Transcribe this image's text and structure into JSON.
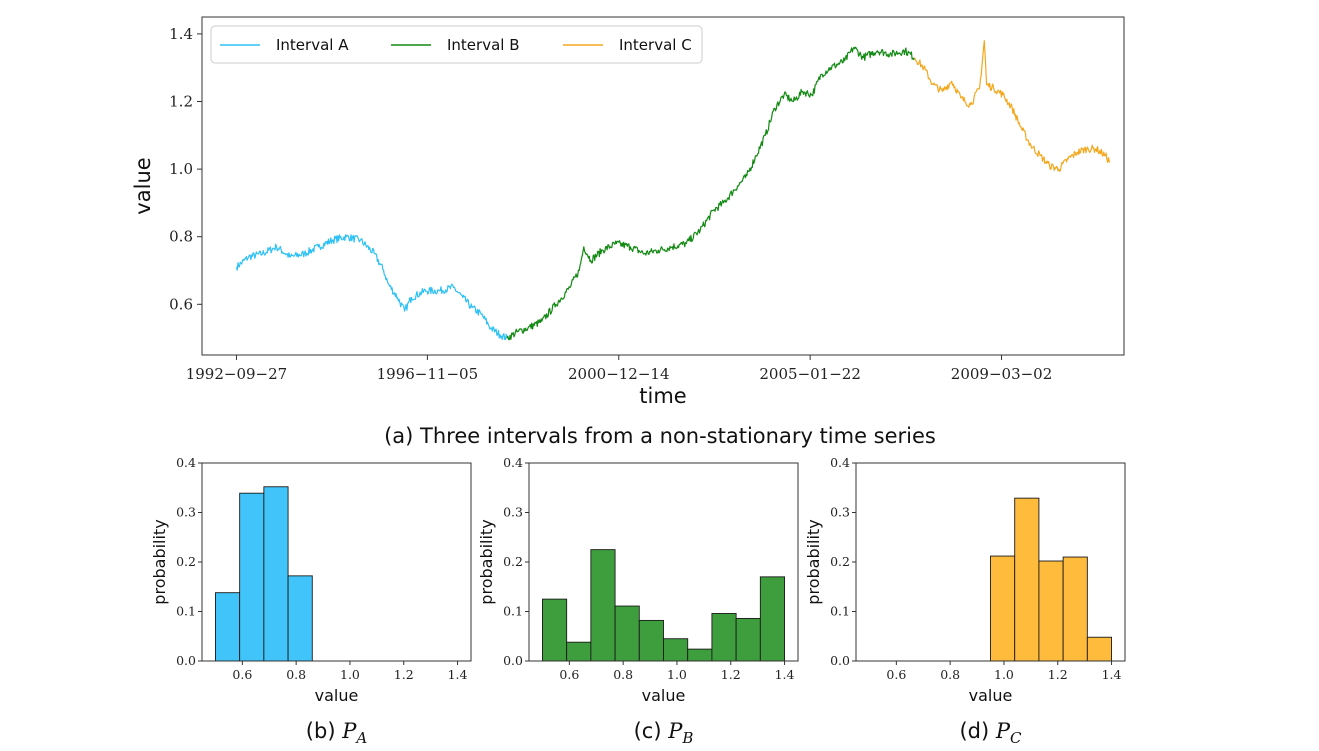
{
  "chart_data": [
    {
      "type": "line",
      "panel": "a",
      "xlabel": "time",
      "ylabel": "value",
      "caption": "(a) Three intervals from a non-stationary time series",
      "x_ticks": [
        "1992−09−27",
        "1996−11−05",
        "2000−12−14",
        "2005−01−22",
        "2009−03−02"
      ],
      "x_tick_years": [
        1992.74,
        1996.84,
        2000.95,
        2005.06,
        2009.17
      ],
      "xlim": [
        1992.0,
        2011.8
      ],
      "ylim": [
        0.45,
        1.45
      ],
      "y_ticks": [
        0.6,
        0.8,
        1.0,
        1.2,
        1.4
      ],
      "y_tick_labels": [
        "0.6",
        "0.8",
        "1.0",
        "1.2",
        "1.4"
      ],
      "legend_position": "top-left",
      "series": [
        {
          "name": "Interval A",
          "color": "#2ec1f5",
          "points": [
            [
              1992.74,
              0.71
            ],
            [
              1993.0,
              0.74
            ],
            [
              1993.3,
              0.75
            ],
            [
              1993.6,
              0.77
            ],
            [
              1993.9,
              0.74
            ],
            [
              1994.2,
              0.75
            ],
            [
              1994.5,
              0.77
            ],
            [
              1994.8,
              0.79
            ],
            [
              1995.1,
              0.8
            ],
            [
              1995.4,
              0.79
            ],
            [
              1995.7,
              0.75
            ],
            [
              1995.9,
              0.7
            ],
            [
              1996.0,
              0.66
            ],
            [
              1996.2,
              0.62
            ],
            [
              1996.35,
              0.58
            ],
            [
              1996.5,
              0.62
            ],
            [
              1996.8,
              0.64
            ],
            [
              1997.1,
              0.64
            ],
            [
              1997.4,
              0.65
            ],
            [
              1997.6,
              0.62
            ],
            [
              1997.8,
              0.59
            ],
            [
              1998.0,
              0.57
            ],
            [
              1998.2,
              0.53
            ],
            [
              1998.4,
              0.51
            ],
            [
              1998.55,
              0.5
            ]
          ]
        },
        {
          "name": "Interval B",
          "color": "#138a13",
          "points": [
            [
              1998.55,
              0.5
            ],
            [
              1998.8,
              0.52
            ],
            [
              1999.0,
              0.53
            ],
            [
              1999.3,
              0.55
            ],
            [
              1999.6,
              0.6
            ],
            [
              1999.9,
              0.65
            ],
            [
              2000.1,
              0.7
            ],
            [
              2000.2,
              0.77
            ],
            [
              2000.35,
              0.73
            ],
            [
              2000.6,
              0.76
            ],
            [
              2000.9,
              0.78
            ],
            [
              2001.2,
              0.77
            ],
            [
              2001.5,
              0.75
            ],
            [
              2001.8,
              0.76
            ],
            [
              2002.1,
              0.77
            ],
            [
              2002.4,
              0.78
            ],
            [
              2002.7,
              0.82
            ],
            [
              2003.0,
              0.88
            ],
            [
              2003.2,
              0.9
            ],
            [
              2003.5,
              0.95
            ],
            [
              2003.7,
              0.98
            ],
            [
              2003.9,
              1.04
            ],
            [
              2004.1,
              1.1
            ],
            [
              2004.3,
              1.18
            ],
            [
              2004.5,
              1.22
            ],
            [
              2004.7,
              1.2
            ],
            [
              2004.9,
              1.23
            ],
            [
              2005.1,
              1.22
            ],
            [
              2005.3,
              1.28
            ],
            [
              2005.5,
              1.3
            ],
            [
              2005.8,
              1.32
            ],
            [
              2006.0,
              1.36
            ],
            [
              2006.2,
              1.33
            ],
            [
              2006.5,
              1.35
            ],
            [
              2006.8,
              1.34
            ],
            [
              2007.1,
              1.35
            ],
            [
              2007.3,
              1.33
            ]
          ]
        },
        {
          "name": "Interval C",
          "color": "#f5a71c",
          "points": [
            [
              2007.3,
              1.33
            ],
            [
              2007.5,
              1.3
            ],
            [
              2007.7,
              1.25
            ],
            [
              2007.9,
              1.23
            ],
            [
              2008.1,
              1.26
            ],
            [
              2008.3,
              1.21
            ],
            [
              2008.5,
              1.19
            ],
            [
              2008.7,
              1.24
            ],
            [
              2008.8,
              1.38
            ],
            [
              2008.85,
              1.25
            ],
            [
              2009.0,
              1.24
            ],
            [
              2009.2,
              1.22
            ],
            [
              2009.4,
              1.18
            ],
            [
              2009.6,
              1.12
            ],
            [
              2009.8,
              1.07
            ],
            [
              2010.0,
              1.04
            ],
            [
              2010.2,
              1.01
            ],
            [
              2010.4,
              1.0
            ],
            [
              2010.6,
              1.03
            ],
            [
              2010.8,
              1.05
            ],
            [
              2011.0,
              1.06
            ],
            [
              2011.2,
              1.06
            ],
            [
              2011.4,
              1.04
            ],
            [
              2011.5,
              1.02
            ]
          ]
        }
      ]
    },
    {
      "type": "bar",
      "panel": "b",
      "caption_prefix": "(b) ",
      "caption_var": "P",
      "caption_sub": "A",
      "color": "#40c4f9",
      "xlabel": "value",
      "ylabel": "probability",
      "xlim": [
        0.45,
        1.45
      ],
      "ylim": [
        0,
        0.4
      ],
      "x_ticks": [
        0.6,
        0.8,
        1.0,
        1.2,
        1.4
      ],
      "x_tick_labels": [
        "0.6",
        "0.8",
        "1.0",
        "1.2",
        "1.4"
      ],
      "y_ticks": [
        0.0,
        0.1,
        0.2,
        0.3,
        0.4
      ],
      "y_tick_labels": [
        "0.0",
        "0.1",
        "0.2",
        "0.3",
        "0.4"
      ],
      "bin_edges": [
        0.5,
        0.59,
        0.68,
        0.77,
        0.86
      ],
      "values": [
        0.138,
        0.339,
        0.352,
        0.172
      ]
    },
    {
      "type": "bar",
      "panel": "c",
      "caption_prefix": "(c) ",
      "caption_var": "P",
      "caption_sub": "B",
      "color": "#3e9e3e",
      "xlabel": "value",
      "ylabel": "probability",
      "xlim": [
        0.45,
        1.45
      ],
      "ylim": [
        0,
        0.4
      ],
      "x_ticks": [
        0.6,
        0.8,
        1.0,
        1.2,
        1.4
      ],
      "x_tick_labels": [
        "0.6",
        "0.8",
        "1.0",
        "1.2",
        "1.4"
      ],
      "y_ticks": [
        0.0,
        0.1,
        0.2,
        0.3,
        0.4
      ],
      "y_tick_labels": [
        "0.0",
        "0.1",
        "0.2",
        "0.3",
        "0.4"
      ],
      "bin_edges": [
        0.5,
        0.59,
        0.68,
        0.77,
        0.86,
        0.95,
        1.04,
        1.13,
        1.22,
        1.31,
        1.4
      ],
      "values": [
        0.125,
        0.038,
        0.225,
        0.111,
        0.082,
        0.045,
        0.024,
        0.096,
        0.086,
        0.17
      ]
    },
    {
      "type": "bar",
      "panel": "d",
      "caption_prefix": "(d) ",
      "caption_var": "P",
      "caption_sub": "C",
      "color": "#ffbb3c",
      "xlabel": "value",
      "ylabel": "probability",
      "xlim": [
        0.45,
        1.45
      ],
      "ylim": [
        0,
        0.4
      ],
      "x_ticks": [
        0.6,
        0.8,
        1.0,
        1.2,
        1.4
      ],
      "x_tick_labels": [
        "0.6",
        "0.8",
        "1.0",
        "1.2",
        "1.4"
      ],
      "y_ticks": [
        0.0,
        0.1,
        0.2,
        0.3,
        0.4
      ],
      "y_tick_labels": [
        "0.0",
        "0.1",
        "0.2",
        "0.3",
        "0.4"
      ],
      "bin_edges": [
        0.5,
        0.59,
        0.68,
        0.77,
        0.86,
        0.95,
        1.04,
        1.13,
        1.22,
        1.31,
        1.4
      ],
      "values": [
        0,
        0,
        0,
        0,
        0,
        0.212,
        0.329,
        0.202,
        0.21,
        0.048
      ]
    }
  ]
}
